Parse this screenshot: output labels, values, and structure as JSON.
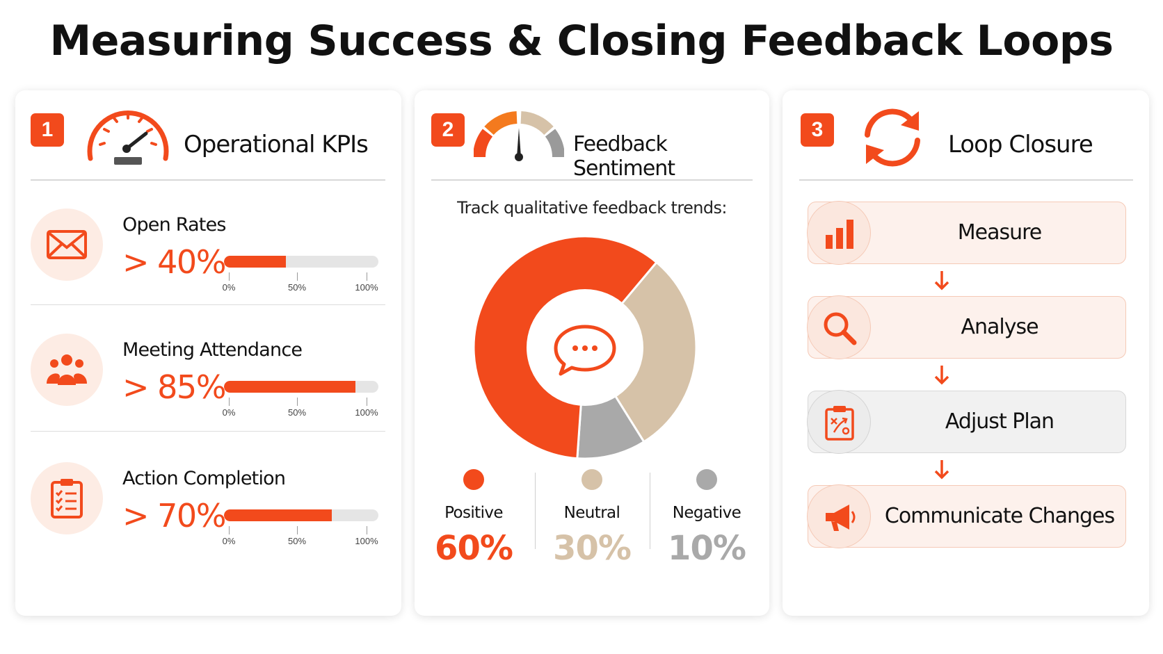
{
  "title": "Measuring Success & Closing Feedback Loops",
  "colors": {
    "accent": "#f24a1c",
    "neutral": "#d6c2a8",
    "negative": "#a9a9a9"
  },
  "panel1": {
    "number": "1",
    "title": "Operational KPIs",
    "icon": "speedometer-icon",
    "kpis": [
      {
        "label": "Open Rates",
        "value": "> 40%",
        "progress": 0.4,
        "icon": "envelope-icon"
      },
      {
        "label": "Meeting Attendance",
        "value": "> 85%",
        "progress": 0.85,
        "icon": "people-icon"
      },
      {
        "label": "Action Completion",
        "value": "> 70%",
        "progress": 0.7,
        "icon": "checklist-icon"
      }
    ],
    "scale_labels": [
      "0%",
      "50%",
      "100%"
    ]
  },
  "panel2": {
    "number": "2",
    "title": "Feedback Sentiment",
    "icon": "gauge-icon",
    "subtitle": "Track qualitative feedback trends:",
    "center_icon": "chat-bubble-icon",
    "sentiment": [
      {
        "name": "Positive",
        "value": "60%",
        "share": 60,
        "color": "#f24a1c"
      },
      {
        "name": "Neutral",
        "value": "30%",
        "share": 30,
        "color": "#d6c2a8"
      },
      {
        "name": "Negative",
        "value": "10%",
        "share": 10,
        "color": "#a9a9a9"
      }
    ]
  },
  "panel3": {
    "number": "3",
    "title": "Loop Closure",
    "icon": "refresh-cycle-icon",
    "steps": [
      {
        "label": "Measure",
        "icon": "bar-chart-icon"
      },
      {
        "label": "Analyse",
        "icon": "magnifier-icon"
      },
      {
        "label": "Adjust Plan",
        "icon": "clipboard-plan-icon"
      },
      {
        "label": "Communicate Changes",
        "icon": "megaphone-icon"
      }
    ]
  }
}
